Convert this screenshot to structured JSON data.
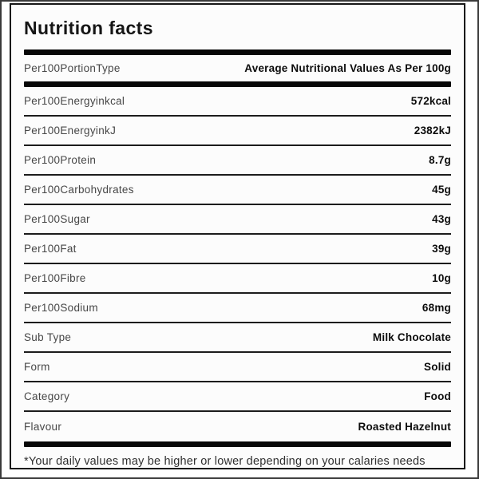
{
  "title": "Nutrition facts",
  "rows": [
    {
      "label": "Per100PortionType",
      "value": "Average Nutritional Values As Per 100g"
    },
    {
      "label": "Per100Energyinkcal",
      "value": "572kcal"
    },
    {
      "label": "Per100EnergyinkJ",
      "value": "2382kJ"
    },
    {
      "label": "Per100Protein",
      "value": "8.7g"
    },
    {
      "label": "Per100Carbohydrates",
      "value": "45g"
    },
    {
      "label": "Per100Sugar",
      "value": "43g"
    },
    {
      "label": "Per100Fat",
      "value": "39g"
    },
    {
      "label": "Per100Fibre",
      "value": "10g"
    },
    {
      "label": "Per100Sodium",
      "value": "68mg"
    },
    {
      "label": "Sub Type",
      "value": "Milk Chocolate"
    },
    {
      "label": "Form",
      "value": "Solid"
    },
    {
      "label": "Category",
      "value": "Food"
    },
    {
      "label": "Flavour",
      "value": "Roasted Hazelnut"
    }
  ],
  "footer_note": "*Your daily values may be higher or lower depending on your calaries needs",
  "colors": {
    "divider": "#070707",
    "separator": "#1c1c1c",
    "label_text": "#474747",
    "value_text": "#0c0c0c",
    "card_background": "#fcfcfc",
    "outer_frame": "#3a3a3a"
  }
}
